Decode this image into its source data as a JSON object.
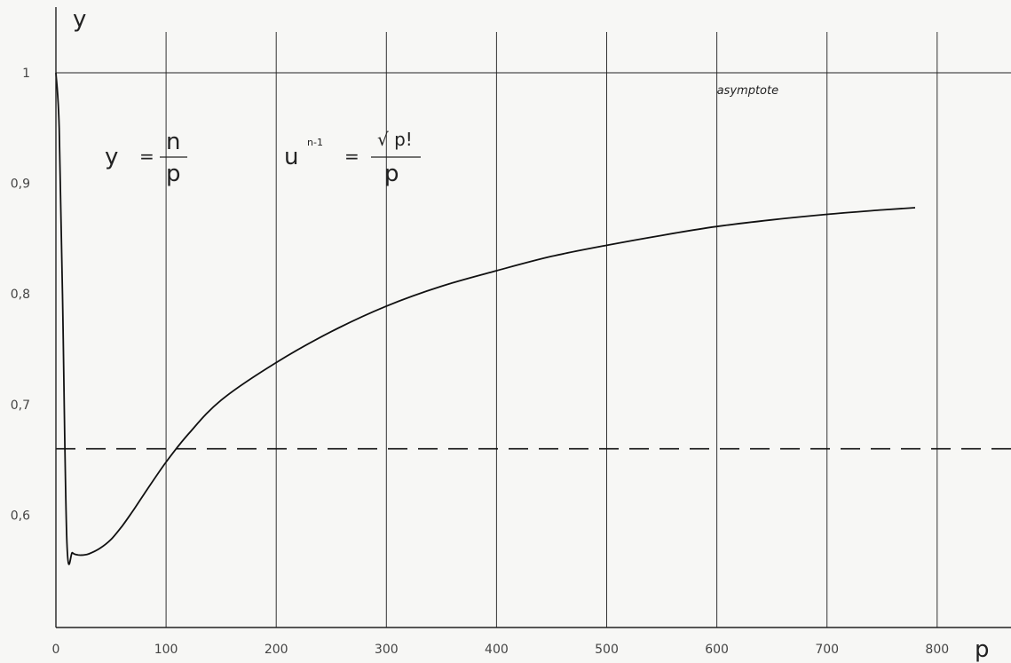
{
  "chart_data": {
    "type": "line",
    "title": "",
    "xlabel": "p",
    "ylabel": "y",
    "xlim": [
      0,
      850
    ],
    "ylim": [
      0.5,
      1.0
    ],
    "grid": true,
    "x_ticks": [
      "0",
      "100",
      "200",
      "300",
      "400",
      "500",
      "600",
      "700",
      "800"
    ],
    "y_ticks": [
      "0,6",
      "0,7",
      "0,8",
      "0,9",
      "1"
    ],
    "series": [
      {
        "x": [
          0,
          3,
          6,
          10,
          15,
          20,
          25,
          30,
          40,
          50,
          60,
          70,
          80,
          100,
          120,
          150,
          200,
          250,
          300,
          350,
          400,
          450,
          500,
          550,
          600,
          650,
          700,
          750,
          780
        ],
        "y": [
          1.0,
          0.95,
          0.8,
          0.575,
          0.566,
          0.564,
          0.564,
          0.565,
          0.57,
          0.578,
          0.59,
          0.604,
          0.619,
          0.648,
          0.673,
          0.704,
          0.738,
          0.766,
          0.789,
          0.807,
          0.821,
          0.834,
          0.844,
          0.853,
          0.861,
          0.867,
          0.872,
          0.876,
          0.878
        ]
      }
    ],
    "reference_lines": [
      {
        "y": 1.0,
        "style": "solid",
        "label": "asymptote"
      },
      {
        "y": 0.66,
        "style": "dashed"
      }
    ],
    "formula": {
      "lhs": "y",
      "equals": "=",
      "numerator": "n",
      "denominator": "p",
      "u_base": "u",
      "u_exponent": "n-1",
      "rhs_numerator": "√ p!",
      "rhs_denominator": "p"
    }
  }
}
